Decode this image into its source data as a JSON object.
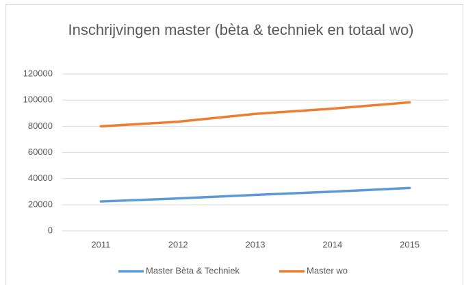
{
  "chart_data": {
    "type": "line",
    "title": "Inschrijvingen master (bèta & techniek en totaal wo)",
    "categories": [
      "2011",
      "2012",
      "2013",
      "2014",
      "2015"
    ],
    "series": [
      {
        "name": "Master Bèta & Techniek",
        "color": "#5b9bd5",
        "values": [
          22500,
          24800,
          27500,
          30000,
          32800
        ]
      },
      {
        "name": "Master wo",
        "color": "#ed7d31",
        "values": [
          80000,
          83500,
          89500,
          93500,
          98300
        ]
      }
    ],
    "ylim": [
      0,
      120000
    ],
    "yticks": [
      0,
      20000,
      40000,
      60000,
      80000,
      100000,
      120000
    ],
    "grid": true,
    "legend": "bottom"
  }
}
